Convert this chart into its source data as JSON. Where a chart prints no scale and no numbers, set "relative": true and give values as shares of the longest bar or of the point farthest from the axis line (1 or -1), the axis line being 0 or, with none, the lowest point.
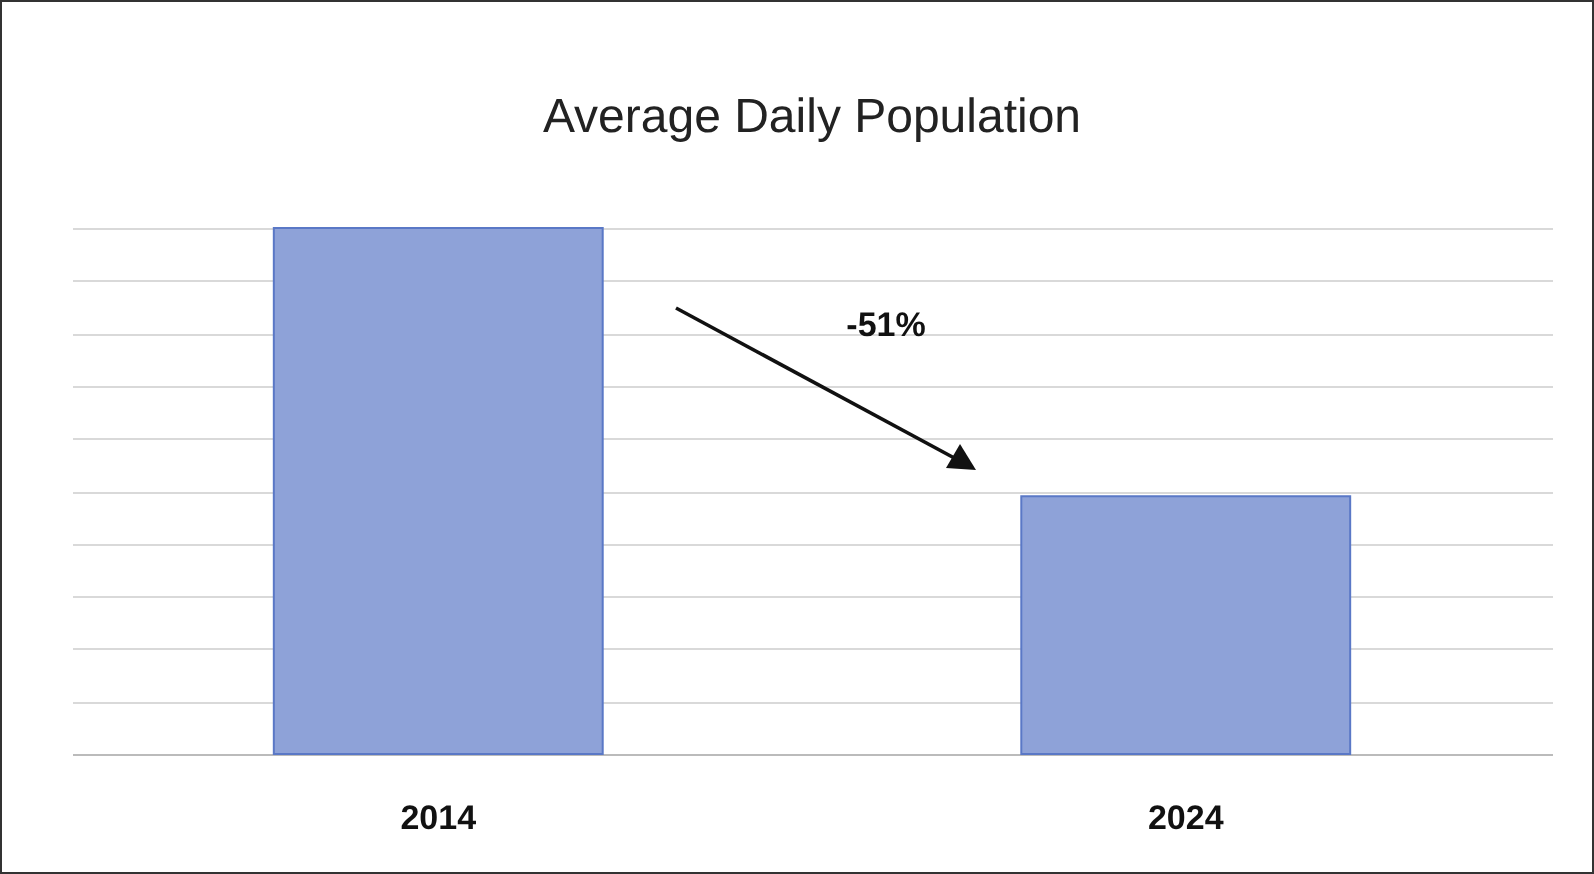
{
  "chart_data": {
    "type": "bar",
    "title": "Average Daily Population",
    "categories": [
      "2014",
      "2024"
    ],
    "values": [
      1,
      0.49
    ],
    "color": "#8ea2d8",
    "relative": true,
    "grid": true,
    "annotations": [
      "-51%"
    ]
  }
}
